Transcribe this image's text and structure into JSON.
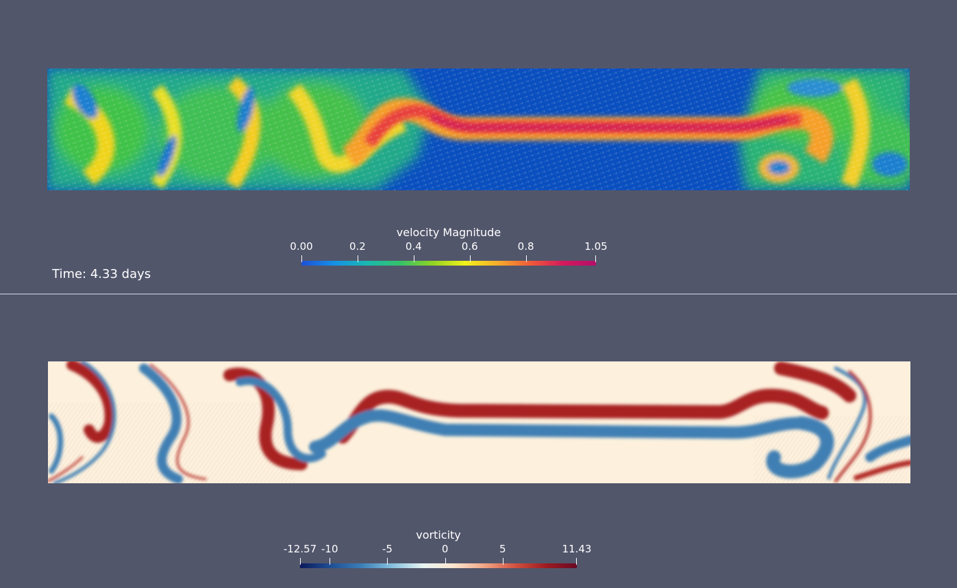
{
  "top_view": {
    "time_label": "Time: 4.33 days",
    "colorbar": {
      "title": "velocity Magnitude",
      "range": [
        0.0,
        1.05
      ],
      "ticks": [
        {
          "value": 0.0,
          "label": "0.00"
        },
        {
          "value": 0.2,
          "label": "0.2"
        },
        {
          "value": 0.4,
          "label": "0.4"
        },
        {
          "value": 0.6,
          "label": "0.6"
        },
        {
          "value": 0.8,
          "label": "0.8"
        },
        {
          "value": 1.05,
          "label": "1.05"
        }
      ],
      "colormap": [
        "#1e4fd6",
        "#1591e6",
        "#19b8b0",
        "#34c26b",
        "#8fd323",
        "#f2f21a",
        "#f6ac2a",
        "#f05a3a",
        "#d6185c",
        "#b30f6a"
      ]
    }
  },
  "bottom_view": {
    "colorbar": {
      "title": "vorticity",
      "range": [
        -12.57,
        11.43
      ],
      "ticks": [
        {
          "value": -12.57,
          "label": "-12.57"
        },
        {
          "value": -10,
          "label": "-10"
        },
        {
          "value": -5,
          "label": "-5"
        },
        {
          "value": 0,
          "label": "0"
        },
        {
          "value": 5,
          "label": "5"
        },
        {
          "value": 11.43,
          "label": "11.43"
        }
      ],
      "colormap": [
        "#0b1a5c",
        "#1f4f94",
        "#3b7fb8",
        "#86c0dd",
        "#e8f4f2",
        "#fbe6cf",
        "#f1a585",
        "#d0513f",
        "#9e1b22",
        "#6a0a24"
      ]
    }
  },
  "colors": {
    "background": "#52566b",
    "divider": "#d9dbe3",
    "field_velocity_base": "#0a4fbf",
    "field_vorticity_base": "#fdf1dd",
    "vorticity_positive": "#a82020",
    "vorticity_negative": "#3f7fb3"
  }
}
